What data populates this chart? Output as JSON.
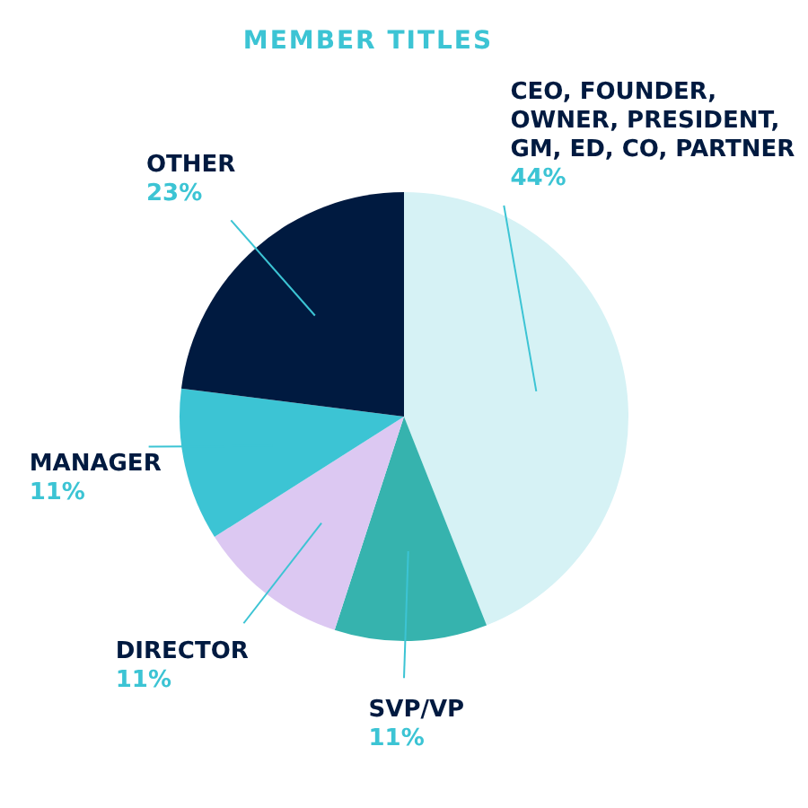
{
  "chart_data": {
    "type": "pie",
    "title": "MEMBER TITLES",
    "categories": [
      "CEO, FOUNDER, OWNER, PRESIDENT, GM, ED, CO, PARTNER",
      "SVP/VP",
      "DIRECTOR",
      "MANAGER",
      "OTHER"
    ],
    "values": [
      44,
      11,
      11,
      11,
      23
    ],
    "value_labels": [
      "44%",
      "11%",
      "11%",
      "11%",
      "23%"
    ],
    "colors": [
      "#d6f2f5",
      "#36b3ae",
      "#dcc8f2",
      "#3cc4d4",
      "#001a40"
    ]
  }
}
